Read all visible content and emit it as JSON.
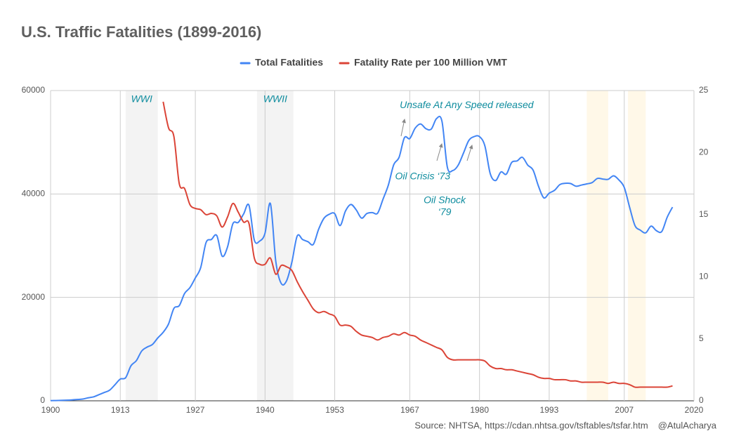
{
  "chart_data": {
    "type": "line",
    "title": "U.S. Traffic Fatalities (1899-2016)",
    "legend": "top",
    "grid": true,
    "x": [
      1900,
      1901,
      1902,
      1903,
      1904,
      1905,
      1906,
      1907,
      1908,
      1909,
      1910,
      1911,
      1912,
      1913,
      1914,
      1915,
      1916,
      1917,
      1918,
      1919,
      1920,
      1921,
      1922,
      1923,
      1924,
      1925,
      1926,
      1927,
      1928,
      1929,
      1930,
      1931,
      1932,
      1933,
      1934,
      1935,
      1936,
      1937,
      1938,
      1939,
      1940,
      1941,
      1942,
      1943,
      1944,
      1945,
      1946,
      1947,
      1948,
      1949,
      1950,
      1951,
      1952,
      1953,
      1954,
      1955,
      1956,
      1957,
      1958,
      1959,
      1960,
      1961,
      1962,
      1963,
      1964,
      1965,
      1966,
      1967,
      1968,
      1969,
      1970,
      1971,
      1972,
      1973,
      1974,
      1975,
      1976,
      1977,
      1978,
      1979,
      1980,
      1981,
      1982,
      1983,
      1984,
      1985,
      1986,
      1987,
      1988,
      1989,
      1990,
      1991,
      1992,
      1993,
      1994,
      1995,
      1996,
      1997,
      1998,
      1999,
      2000,
      2001,
      2002,
      2003,
      2004,
      2005,
      2006,
      2007,
      2008,
      2009,
      2010,
      2011,
      2012,
      2013,
      2014,
      2015,
      2016
    ],
    "xlim": [
      1900,
      2020
    ],
    "xticks": [
      1900,
      1913,
      1927,
      1940,
      1953,
      1967,
      1980,
      1993,
      2007,
      2020
    ],
    "ylim": [
      0,
      60000
    ],
    "yticks": [
      0,
      20000,
      40000,
      60000
    ],
    "y2lim": [
      0,
      25
    ],
    "y2ticks": [
      0,
      5,
      10,
      15,
      20,
      25
    ],
    "series": [
      {
        "name": "Total Fatalities",
        "color": "#4285f4",
        "values": [
          36,
          54,
          79,
          117,
          172,
          252,
          338,
          581,
          751,
          1174,
          1599,
          2043,
          3100,
          4200,
          4468,
          6779,
          7766,
          9630,
          10390,
          10896,
          12155,
          13253,
          14859,
          17870,
          18400,
          20771,
          21894,
          23765,
          25771,
          30600,
          31204,
          31963,
          27979,
          29746,
          34240,
          34494,
          36126,
          37819,
          31083,
          30895,
          32430,
          38142,
          27007,
          22727,
          23165,
          26785,
          31874,
          31193,
          30775,
          30246,
          33186,
          35309,
          36088,
          36190,
          33890,
          36688,
          37965,
          36932,
          35331,
          36223,
          36399,
          36285,
          38980,
          41723,
          45645,
          47089,
          50894,
          50724,
          52725,
          53543,
          52627,
          52542,
          54589,
          54052,
          45196,
          44525,
          45523,
          47878,
          50331,
          51093,
          51091,
          49301,
          43945,
          42589,
          44257,
          43825,
          46087,
          46390,
          47087,
          45582,
          44599,
          41508,
          39250,
          40150,
          40716,
          41817,
          42065,
          42013,
          41501,
          41717,
          41945,
          42196,
          43005,
          42884,
          42836,
          43510,
          42708,
          41259,
          37423,
          33883,
          32999,
          32479,
          33782,
          32893,
          32744,
          35485,
          37461
        ]
      },
      {
        "name": "Fatality Rate per 100 Million VMT",
        "color": "#db4437",
        "axis": "y2",
        "values": [
          null,
          null,
          null,
          null,
          null,
          null,
          null,
          null,
          null,
          null,
          null,
          null,
          null,
          null,
          null,
          null,
          null,
          null,
          null,
          null,
          null,
          24.1,
          22.0,
          21.3,
          17.5,
          17.1,
          15.8,
          15.5,
          15.4,
          15.0,
          15.1,
          14.9,
          14.0,
          14.8,
          15.9,
          15.2,
          14.4,
          14.3,
          11.5,
          11.0,
          11.0,
          11.5,
          10.2,
          10.9,
          10.8,
          10.5,
          9.6,
          8.8,
          8.1,
          7.4,
          7.1,
          7.2,
          7.0,
          6.8,
          6.1,
          6.1,
          6.0,
          5.6,
          5.3,
          5.2,
          5.1,
          4.9,
          5.1,
          5.2,
          5.4,
          5.3,
          5.5,
          5.3,
          5.2,
          4.9,
          4.7,
          4.5,
          4.3,
          4.1,
          3.5,
          3.3,
          3.3,
          3.3,
          3.3,
          3.3,
          3.3,
          3.2,
          2.8,
          2.6,
          2.6,
          2.5,
          2.5,
          2.4,
          2.3,
          2.2,
          2.1,
          1.9,
          1.8,
          1.8,
          1.7,
          1.7,
          1.7,
          1.6,
          1.6,
          1.5,
          1.5,
          1.5,
          1.5,
          1.5,
          1.4,
          1.5,
          1.4,
          1.4,
          1.3,
          1.1,
          1.1,
          1.1,
          1.1,
          1.1,
          1.1,
          1.1,
          1.2
        ]
      }
    ],
    "shaded_periods": [
      {
        "label": "WWI",
        "start": 1914,
        "end": 1920,
        "color": "#f3f3f3"
      },
      {
        "label": "WWII",
        "start": 1938.5,
        "end": 1945.3,
        "color": "#f3f3f3"
      },
      {
        "start": 2000,
        "end": 2004,
        "color": "#fff8e8"
      },
      {
        "start": 2007.7,
        "end": 2011,
        "color": "#fff8e8"
      }
    ],
    "annotations": [
      {
        "text": [
          "Unsafe At Any Speed released"
        ],
        "x": 1977.6,
        "y": 57100
      },
      {
        "text": [
          "Oil Crisis ‘73"
        ],
        "x": 1969.4,
        "y": 43300
      },
      {
        "text": [
          "Oil Shock",
          "‘79"
        ],
        "x": 1973.5,
        "y": 38700
      }
    ],
    "source": "Source: NHTSA, https://cdan.nhtsa.gov/tsftables/tsfar.htm",
    "credit": "@AtulAcharya"
  }
}
